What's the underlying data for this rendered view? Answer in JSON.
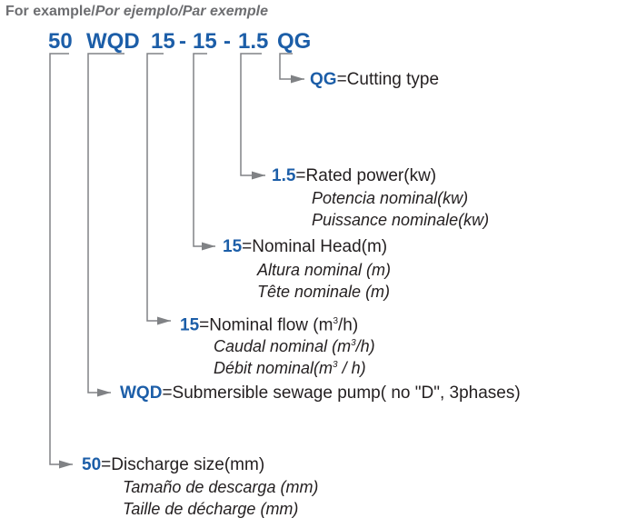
{
  "header": {
    "en": "For example/",
    "es": "Por ejemplo/",
    "fr": "Par exemple"
  },
  "code": {
    "p1": "50",
    "p2": "WQD",
    "p3": "15",
    "d1": "-",
    "p4": "15",
    "d2": "-",
    "p5": "1.5",
    "p6": "QG"
  },
  "colors": {
    "code": "#1c5ea8",
    "lines": "#808285"
  },
  "items": [
    {
      "code": "QG",
      "eq": "=",
      "en": "Cutting type"
    },
    {
      "code": "1.5",
      "eq": "=",
      "en": "Rated power(kw)",
      "es": "Potencia nominal(kw)",
      "fr": "Puissance nominale(kw)"
    },
    {
      "code": "15",
      "eq": "=",
      "en": "Nominal Head(m)",
      "es": "Altura nominal (m)",
      "fr": "Tête nominale (m)"
    },
    {
      "code": "15",
      "eq": "=",
      "en": "Nominal flow (m",
      "sup": "3",
      "en_end": "/h)",
      "es": "Caudal nominal (m",
      "es_end": "/h)",
      "fr": "Débit nominal(m",
      "fr_end": " / h)"
    },
    {
      "code": "WQD",
      "eq": "=",
      "en": "Submersible sewage pump( no \"D\", 3phases)"
    },
    {
      "code": "50",
      "eq": "=",
      "en": "Discharge size(mm)",
      "es": "Tamaño de descarga (mm)",
      "fr": "Taille de décharge (mm)"
    }
  ]
}
